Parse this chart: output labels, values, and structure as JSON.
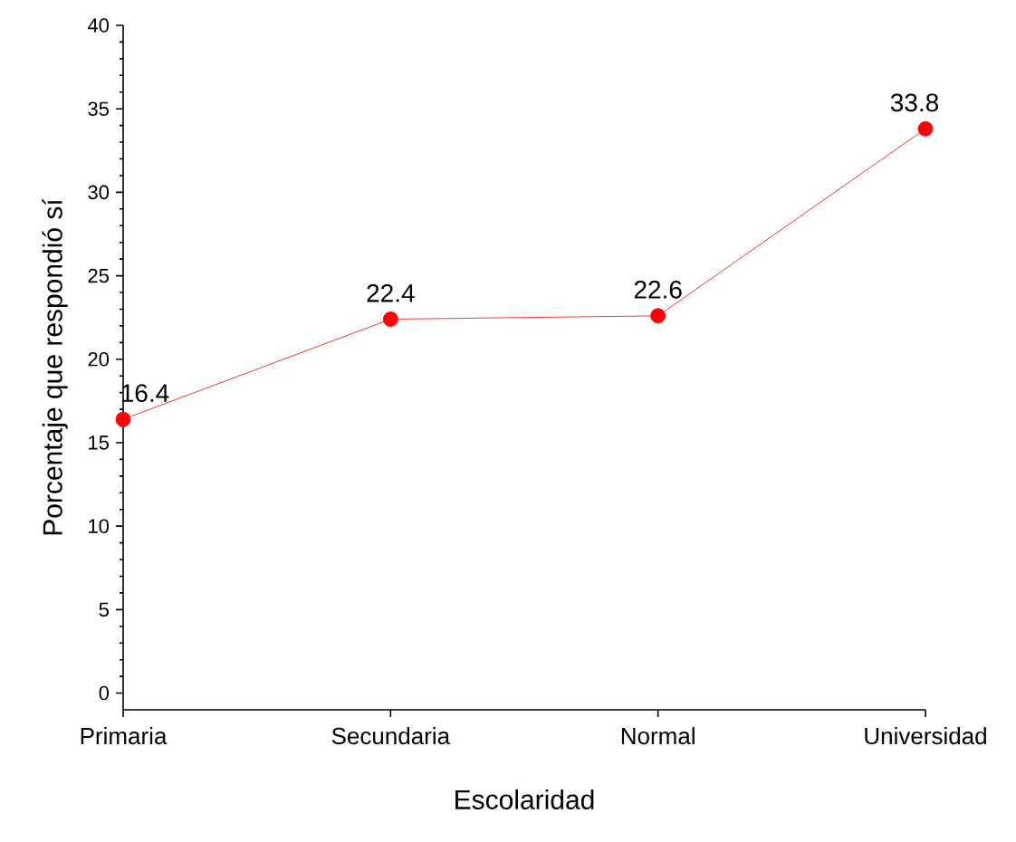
{
  "chart_data": {
    "type": "line",
    "xlabel": "Escolaridad",
    "ylabel": "Porcentaje que respondió sí",
    "categories": [
      "Primaria",
      "Secundaria",
      "Normal",
      "Universidad"
    ],
    "series": [
      {
        "color": "#ff0000",
        "values": [
          16.4,
          22.4,
          22.6,
          33.8
        ]
      }
    ],
    "ylim": [
      -1,
      40
    ],
    "yticks": [
      0,
      5,
      10,
      15,
      20,
      25,
      30,
      35,
      40
    ],
    "data_labels": true,
    "marker": "circle",
    "line_style": "solid"
  }
}
